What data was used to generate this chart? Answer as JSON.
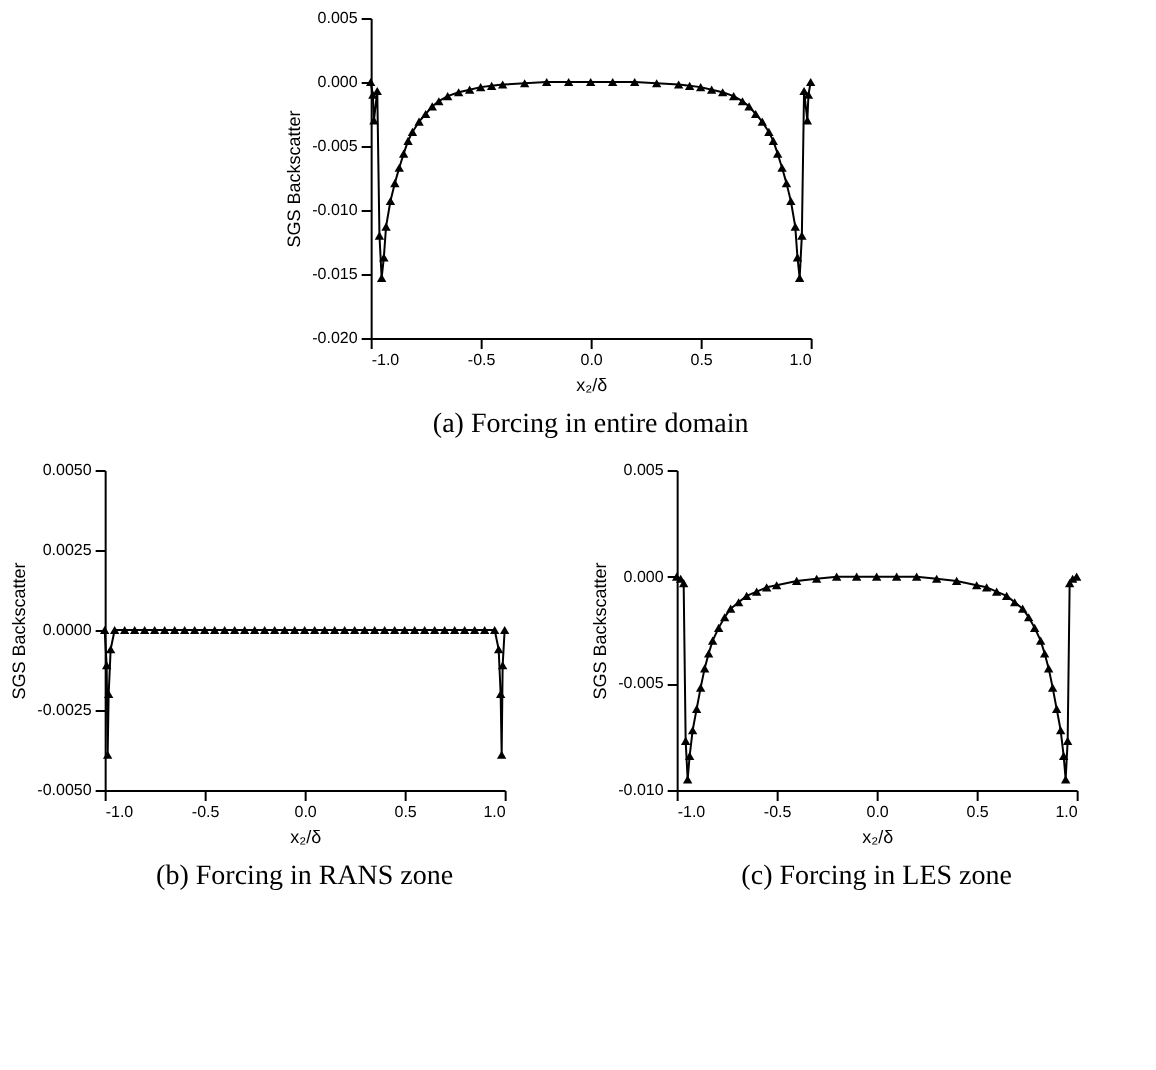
{
  "chart_data": [
    {
      "type": "line",
      "title": "(a)  Forcing in entire domain",
      "xlabel": "x₂/δ",
      "ylabel": "SGS Backscatter",
      "marker": "triangle",
      "x": [
        -1.0,
        -0.99,
        -0.985,
        -0.97,
        -0.96,
        -0.95,
        -0.94,
        -0.93,
        -0.91,
        -0.89,
        -0.87,
        -0.85,
        -0.83,
        -0.81,
        -0.78,
        -0.75,
        -0.72,
        -0.69,
        -0.65,
        -0.6,
        -0.55,
        -0.5,
        -0.45,
        -0.4,
        -0.3,
        -0.2,
        -0.1,
        0.0,
        0.1,
        0.2,
        0.3,
        0.4,
        0.45,
        0.5,
        0.55,
        0.6,
        0.65,
        0.69,
        0.72,
        0.75,
        0.78,
        0.81,
        0.83,
        0.85,
        0.87,
        0.89,
        0.91,
        0.93,
        0.94,
        0.95,
        0.96,
        0.97,
        0.985,
        0.99,
        1.0
      ],
      "series": [
        {
          "color": "#000000",
          "values": [
            0.0,
            -0.001,
            -0.003,
            -0.0007,
            -0.012,
            -0.0153,
            -0.0137,
            -0.0113,
            -0.0093,
            -0.0079,
            -0.0067,
            -0.0056,
            -0.0046,
            -0.0039,
            -0.0031,
            -0.0025,
            -0.0019,
            -0.0015,
            -0.0011,
            -0.0008,
            -0.0006,
            -0.0004,
            -0.0003,
            -0.0002,
            -0.0001,
            0.0,
            0.0,
            0.0,
            0.0,
            0.0,
            -0.0001,
            -0.0002,
            -0.0003,
            -0.0004,
            -0.0006,
            -0.0008,
            -0.0011,
            -0.0015,
            -0.0019,
            -0.0025,
            -0.0031,
            -0.0039,
            -0.0046,
            -0.0056,
            -0.0067,
            -0.0079,
            -0.0093,
            -0.0113,
            -0.0137,
            -0.0153,
            -0.012,
            -0.0007,
            -0.003,
            -0.001,
            0.0
          ]
        }
      ],
      "xlim": [
        -1.0,
        1.0
      ],
      "xticks": [
        {
          "value": -1,
          "label": "-1.0"
        },
        {
          "value": -0.5,
          "label": "-0.5"
        },
        {
          "value": 0,
          "label": "0.0"
        },
        {
          "value": 0.5,
          "label": "0.5"
        },
        {
          "value": 1,
          "label": "1.0"
        }
      ],
      "ylim": [
        -0.02,
        0.005
      ],
      "yticks": [
        {
          "value": -0.02,
          "label": "-0.020"
        },
        {
          "value": -0.015,
          "label": "-0.015"
        },
        {
          "value": -0.01,
          "label": "-0.010"
        },
        {
          "value": -0.005,
          "label": "-0.005"
        },
        {
          "value": 0,
          "label": "0.000"
        },
        {
          "value": 0.005,
          "label": "0.005"
        }
      ]
    },
    {
      "type": "line",
      "title": "(b)  Forcing in RANS zone",
      "xlabel": "x₂/δ",
      "ylabel": "SGS Backscatter",
      "marker": "triangle",
      "x": [
        -1.0,
        -0.99,
        -0.985,
        -0.98,
        -0.97,
        -0.95,
        -0.9,
        -0.85,
        -0.8,
        -0.75,
        -0.7,
        -0.65,
        -0.6,
        -0.55,
        -0.5,
        -0.45,
        -0.4,
        -0.35,
        -0.3,
        -0.25,
        -0.2,
        -0.15,
        -0.1,
        -0.05,
        0.0,
        0.05,
        0.1,
        0.15,
        0.2,
        0.25,
        0.3,
        0.35,
        0.4,
        0.45,
        0.5,
        0.55,
        0.6,
        0.65,
        0.7,
        0.75,
        0.8,
        0.85,
        0.9,
        0.95,
        0.97,
        0.98,
        0.985,
        0.99,
        1.0
      ],
      "series": [
        {
          "color": "#000000",
          "values": [
            0.0,
            -0.0011,
            -0.0039,
            -0.002,
            -0.0006,
            0.0,
            0.0,
            0.0,
            0.0,
            0.0,
            0.0,
            0.0,
            0.0,
            0.0,
            0.0,
            0.0,
            0.0,
            0.0,
            0.0,
            0.0,
            0.0,
            0.0,
            0.0,
            0.0,
            0.0,
            0.0,
            0.0,
            0.0,
            0.0,
            0.0,
            0.0,
            0.0,
            0.0,
            0.0,
            0.0,
            0.0,
            0.0,
            0.0,
            0.0,
            0.0,
            0.0,
            0.0,
            0.0,
            0.0,
            -0.0006,
            -0.002,
            -0.0039,
            -0.0011,
            0.0
          ]
        }
      ],
      "xlim": [
        -1.0,
        1.0
      ],
      "xticks": [
        {
          "value": -1,
          "label": "-1.0"
        },
        {
          "value": -0.5,
          "label": "-0.5"
        },
        {
          "value": 0,
          "label": "0.0"
        },
        {
          "value": 0.5,
          "label": "0.5"
        },
        {
          "value": 1,
          "label": "1.0"
        }
      ],
      "ylim": [
        -0.005,
        0.005
      ],
      "yticks": [
        {
          "value": -0.005,
          "label": "-0.0050"
        },
        {
          "value": -0.0025,
          "label": "-0.0025"
        },
        {
          "value": 0,
          "label": "0.0000"
        },
        {
          "value": 0.0025,
          "label": "0.0025"
        },
        {
          "value": 0.005,
          "label": "0.0050"
        }
      ]
    },
    {
      "type": "line",
      "title": "(c)  Forcing in LES zone",
      "xlabel": "x₂/δ",
      "ylabel": "SGS Backscatter",
      "marker": "triangle",
      "x": [
        -1.0,
        -0.98,
        -0.965,
        -0.955,
        -0.945,
        -0.935,
        -0.92,
        -0.9,
        -0.88,
        -0.86,
        -0.84,
        -0.82,
        -0.79,
        -0.76,
        -0.73,
        -0.69,
        -0.65,
        -0.6,
        -0.55,
        -0.5,
        -0.4,
        -0.3,
        -0.2,
        -0.1,
        0.0,
        0.1,
        0.2,
        0.3,
        0.4,
        0.5,
        0.55,
        0.6,
        0.65,
        0.69,
        0.73,
        0.76,
        0.79,
        0.82,
        0.84,
        0.86,
        0.88,
        0.9,
        0.92,
        0.935,
        0.945,
        0.955,
        0.965,
        0.98,
        1.0
      ],
      "series": [
        {
          "color": "#000000",
          "values": [
            0.0,
            -0.0001,
            -0.0003,
            -0.0077,
            -0.0095,
            -0.0084,
            -0.0072,
            -0.0062,
            -0.0052,
            -0.0043,
            -0.0036,
            -0.003,
            -0.0024,
            -0.0019,
            -0.0015,
            -0.0012,
            -0.0009,
            -0.0007,
            -0.0005,
            -0.0004,
            -0.0002,
            -0.0001,
            0.0,
            0.0,
            0.0,
            0.0,
            0.0,
            -0.0001,
            -0.0002,
            -0.0004,
            -0.0005,
            -0.0007,
            -0.0009,
            -0.0012,
            -0.0015,
            -0.0019,
            -0.0024,
            -0.003,
            -0.0036,
            -0.0043,
            -0.0052,
            -0.0062,
            -0.0072,
            -0.0084,
            -0.0095,
            -0.0077,
            -0.0003,
            -0.0001,
            0.0
          ]
        }
      ],
      "xlim": [
        -1.0,
        1.0
      ],
      "xticks": [
        {
          "value": -1,
          "label": "-1.0"
        },
        {
          "value": -0.5,
          "label": "-0.5"
        },
        {
          "value": 0,
          "label": "0.0"
        },
        {
          "value": 0.5,
          "label": "0.5"
        },
        {
          "value": 1,
          "label": "1.0"
        }
      ],
      "ylim": [
        -0.01,
        0.005
      ],
      "yticks": [
        {
          "value": -0.01,
          "label": "-0.010"
        },
        {
          "value": -0.005,
          "label": "-0.005"
        },
        {
          "value": 0,
          "label": "0.000"
        },
        {
          "value": 0.005,
          "label": "0.005"
        }
      ]
    }
  ]
}
